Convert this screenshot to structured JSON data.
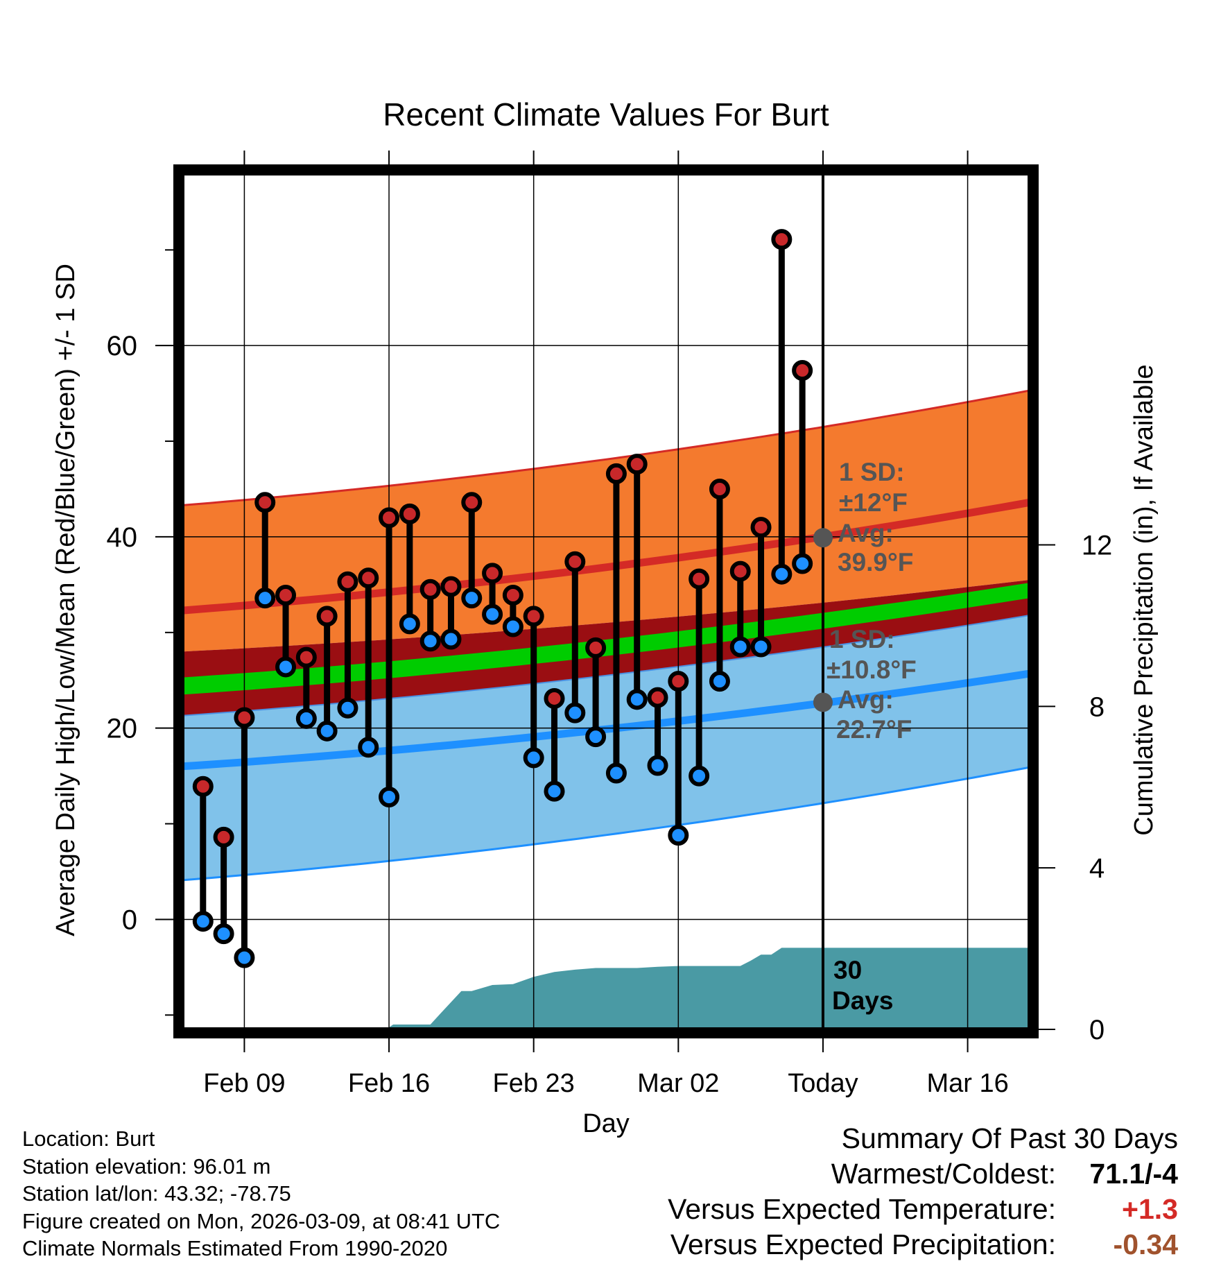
{
  "chart_data": {
    "type": "climate-range",
    "title": "Recent Climate Values For Burt",
    "xlabel": "Day",
    "ylabel": "Average Daily High/Low/Mean (Red/Blue/Green) +/- 1 SD",
    "y2label": "Cumulative Precipitation (in), If Available",
    "xaxis": {
      "range_days": [
        0,
        41
      ],
      "tick_days": [
        3,
        10,
        17,
        24,
        31,
        38
      ],
      "tick_labels": [
        "Feb 09",
        "Feb 16",
        "Feb 23",
        "Mar 02",
        "Today",
        "Mar 16"
      ]
    },
    "ylim": [
      -11.5,
      78
    ],
    "yticks": [
      0,
      20,
      40,
      60
    ],
    "y2lim": [
      0,
      21.2
    ],
    "y2ticks": [
      0,
      4,
      8,
      12
    ],
    "today_day": 31,
    "normals": {
      "high_mean": {
        "start": 32.3,
        "end": 43.6
      },
      "high_sd_upper": {
        "start": 43.3,
        "end": 55.3
      },
      "high_sd_lower": {
        "start": 28.0,
        "end": 35.5
      },
      "low_mean": {
        "start": 16.0,
        "end": 25.7
      },
      "low_sd_upper": {
        "start": 21.3,
        "end": 31.8
      },
      "low_sd_lower": {
        "start": 4.1,
        "end": 15.9
      },
      "mean_upper": {
        "start": 25.3,
        "end": 35.2
      },
      "mean_lower": {
        "start": 23.5,
        "end": 33.6
      }
    },
    "series": [
      {
        "name": "Daily High",
        "color": "#c8282a",
        "x": [
          1,
          2,
          3,
          4,
          5,
          6,
          7,
          8,
          9,
          10,
          11,
          12,
          13,
          14,
          15,
          16,
          17,
          18,
          19,
          20,
          21,
          22,
          23,
          24,
          25,
          26,
          27,
          28,
          29,
          30
        ],
        "values": [
          13.9,
          8.6,
          21.1,
          43.6,
          33.9,
          27.4,
          31.7,
          35.3,
          35.7,
          42.0,
          42.4,
          34.5,
          34.8,
          43.6,
          36.2,
          33.9,
          31.7,
          23.1,
          37.4,
          28.4,
          46.6,
          47.6,
          23.2,
          24.9,
          35.6,
          45.0,
          36.4,
          41.0,
          71.1,
          57.4
        ]
      },
      {
        "name": "Daily Low",
        "color": "#1e90ff",
        "x": [
          1,
          2,
          3,
          4,
          5,
          6,
          7,
          8,
          9,
          10,
          11,
          12,
          13,
          14,
          15,
          16,
          17,
          18,
          19,
          20,
          21,
          22,
          23,
          24,
          25,
          26,
          27,
          28,
          29,
          30
        ],
        "values": [
          -0.2,
          -1.5,
          -4.0,
          33.6,
          26.4,
          21.0,
          19.7,
          22.1,
          18.0,
          12.8,
          30.9,
          29.1,
          29.3,
          33.6,
          31.9,
          30.6,
          16.9,
          13.4,
          21.6,
          19.1,
          15.3,
          23.0,
          16.1,
          8.8,
          15.0,
          24.9,
          28.5,
          28.5,
          36.1,
          37.2
        ]
      },
      {
        "name": "Cumulative Precipitation",
        "color": "#4a9aa4",
        "x": [
          0,
          6,
          6.2,
          10,
          10.2,
          11,
          12,
          12.5,
          13.5,
          14,
          15,
          16,
          17,
          18,
          19,
          20,
          21,
          22,
          23,
          24,
          25,
          26,
          27,
          27.5,
          28,
          28.5,
          29,
          30,
          31,
          41
        ],
        "values": [
          0,
          0,
          0.05,
          0.05,
          0.12,
          0.12,
          0.12,
          0.4,
          0.95,
          0.95,
          1.1,
          1.12,
          1.3,
          1.42,
          1.48,
          1.52,
          1.52,
          1.52,
          1.55,
          1.57,
          1.57,
          1.57,
          1.57,
          1.7,
          1.85,
          1.85,
          2.02,
          2.02,
          2.02,
          2.02
        ]
      }
    ],
    "annotations": {
      "high_sd": "1 SD:",
      "high_sd_value": "±12°F",
      "high_avg": "Avg:",
      "high_avg_value": "39.9°F",
      "high_avg_num": 39.9,
      "low_sd": "1 SD:",
      "low_sd_value": "±10.8°F",
      "low_avg": "Avg:",
      "low_avg_value": "22.7°F",
      "low_avg_num": 22.7,
      "precip_days_1": "30",
      "precip_days_2": "Days"
    },
    "legend": "none"
  },
  "colors": {
    "high_band": "#f47a2e",
    "high_line": "#d42a26",
    "low_band": "#80c2ea",
    "low_line": "#1e90ff",
    "mean_band": "#00cc00",
    "between_band": "#9a0e12",
    "precip": "#4a9aa4",
    "annotation": "#555555",
    "dot_high": "#c8282a",
    "dot_low": "#1e90ff",
    "warm_value": "#d42a26",
    "precip_value": "#a0522d"
  },
  "info": {
    "location": "Location: Burt",
    "elevation": "Station elevation: 96.01 m",
    "latlon": "Station lat/lon: 43.32; -78.75",
    "created": "Figure created on Mon, 2026-03-09, at 08:41 UTC",
    "normals": "Climate Normals Estimated From 1990-2020"
  },
  "summary": {
    "title": "Summary Of Past 30 Days",
    "warmest_label": "Warmest/Coldest:",
    "warmest_value": "71.1/-4",
    "temp_label": "Versus Expected Temperature:",
    "temp_value": "+1.3",
    "precip_label": "Versus Expected Precipitation:",
    "precip_value": "-0.34"
  }
}
